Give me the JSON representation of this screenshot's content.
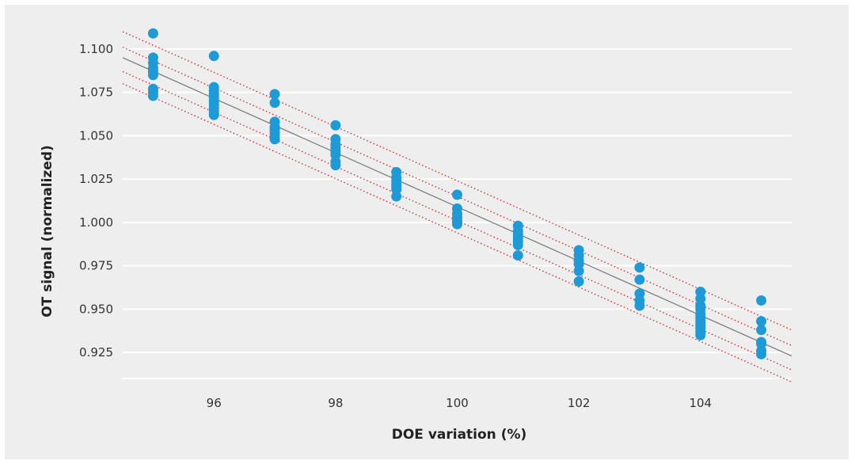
{
  "chart_data": {
    "type": "scatter",
    "title": "",
    "xlabel": "DOE variation (%)",
    "ylabel": "OT signal (normalized)",
    "xlim": [
      94.5,
      105.5
    ],
    "ylim": [
      0.91,
      1.11
    ],
    "x_ticks": [
      "96",
      "98",
      "100",
      "102",
      "104"
    ],
    "y_ticks": [
      "1.100",
      "1.075",
      "1.050",
      "1.025",
      "1.000",
      "0.975",
      "0.950",
      "0.925"
    ],
    "grid": "horizontal",
    "background": "#eeeeee",
    "colors": {
      "points": "#1e9ad6",
      "fit_line": "#777777",
      "bands": "#c0272d"
    },
    "series": [
      {
        "x": [
          95,
          95,
          95,
          95,
          95,
          95,
          95,
          95,
          95,
          96,
          96,
          96,
          96,
          96,
          96,
          96,
          96,
          96,
          96,
          97,
          97,
          97,
          97,
          97,
          97,
          97,
          97,
          98,
          98,
          98,
          98,
          98,
          98,
          98,
          98,
          99,
          99,
          99,
          99,
          99,
          99,
          99,
          100,
          100,
          100,
          100,
          100,
          100,
          100,
          101,
          101,
          101,
          101,
          101,
          101,
          101,
          102,
          102,
          102,
          102,
          102,
          102,
          103,
          103,
          103,
          103,
          103,
          104,
          104,
          104,
          104,
          104,
          104,
          104,
          104,
          104,
          104,
          104,
          105,
          105,
          105,
          105,
          105,
          105,
          105
        ],
        "y": [
          1.109,
          1.095,
          1.092,
          1.089,
          1.087,
          1.085,
          1.077,
          1.075,
          1.073,
          1.096,
          1.078,
          1.076,
          1.074,
          1.072,
          1.07,
          1.068,
          1.066,
          1.064,
          1.062,
          1.074,
          1.069,
          1.058,
          1.055,
          1.054,
          1.052,
          1.05,
          1.048,
          1.056,
          1.048,
          1.045,
          1.043,
          1.041,
          1.039,
          1.035,
          1.033,
          1.029,
          1.026,
          1.024,
          1.022,
          1.021,
          1.019,
          1.015,
          1.016,
          1.008,
          1.005,
          1.003,
          1.001,
          1.0,
          0.999,
          0.998,
          0.995,
          0.993,
          0.991,
          0.989,
          0.987,
          0.981,
          0.984,
          0.981,
          0.978,
          0.976,
          0.972,
          0.966,
          0.974,
          0.967,
          0.959,
          0.955,
          0.952,
          0.96,
          0.956,
          0.952,
          0.95,
          0.947,
          0.945,
          0.943,
          0.941,
          0.939,
          0.937,
          0.935,
          0.955,
          0.943,
          0.938,
          0.931,
          0.93,
          0.926,
          0.924
        ]
      }
    ],
    "fit_line": {
      "x": [
        94.5,
        105.5
      ],
      "y": [
        1.095,
        0.923
      ]
    },
    "bands": [
      {
        "x": [
          94.5,
          105.5
        ],
        "y": [
          1.11,
          0.938
        ]
      },
      {
        "x": [
          94.5,
          105.5
        ],
        "y": [
          1.08,
          0.908
        ]
      },
      {
        "x": [
          94.5,
          105.5
        ],
        "y": [
          1.101,
          0.929
        ]
      },
      {
        "x": [
          94.5,
          105.5
        ],
        "y": [
          1.087,
          0.915
        ]
      }
    ]
  }
}
